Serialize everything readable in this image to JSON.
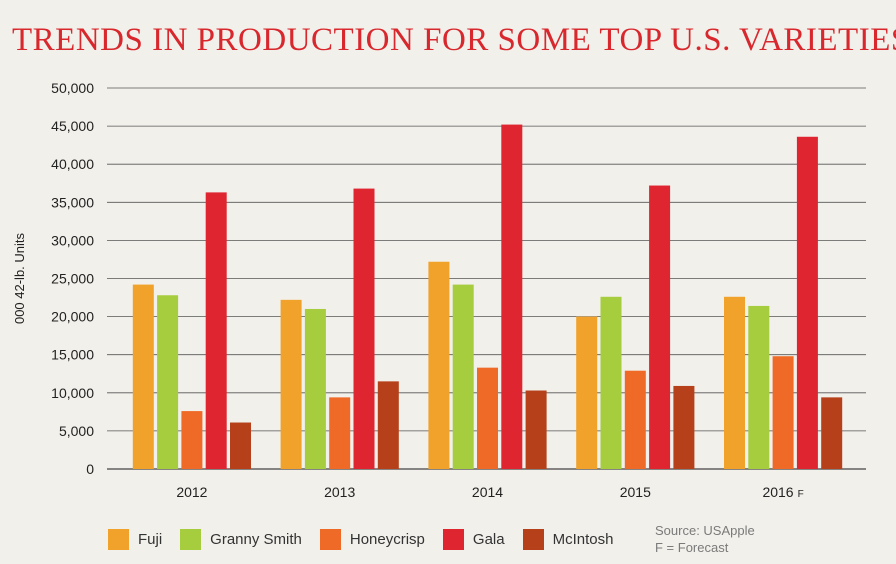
{
  "chart_data": {
    "type": "bar",
    "title": "TRENDS IN PRODUCTION FOR SOME TOP U.S. VARIETIES",
    "ylabel": "000 42-lb. Units",
    "xlabel": "",
    "ylim": [
      0,
      50000
    ],
    "yticks": [
      0,
      5000,
      10000,
      15000,
      20000,
      25000,
      30000,
      35000,
      40000,
      45000,
      50000
    ],
    "ytick_labels": [
      "0",
      "5,000",
      "10,000",
      "15,000",
      "20,000",
      "25,000",
      "30,000",
      "35,000",
      "40,000",
      "45,000",
      "50,000"
    ],
    "categories": [
      "2012",
      "2013",
      "2014",
      "2015",
      "2016"
    ],
    "category_suffix": {
      "2016": "F"
    },
    "grid": true,
    "legend_position": "bottom",
    "series": [
      {
        "name": "Fuji",
        "color": "#f0a22a",
        "values": [
          24200,
          22200,
          27200,
          20000,
          22600
        ]
      },
      {
        "name": "Granny Smith",
        "color": "#a6cd3d",
        "values": [
          22800,
          21000,
          24200,
          22600,
          21400
        ]
      },
      {
        "name": "Honeycrisp",
        "color": "#ef6a27",
        "values": [
          7600,
          9400,
          13300,
          12900,
          14800
        ]
      },
      {
        "name": "Gala",
        "color": "#df2530",
        "values": [
          36300,
          36800,
          45200,
          37200,
          43600
        ]
      },
      {
        "name": "McIntosh",
        "color": "#b5401a",
        "values": [
          6100,
          11500,
          10300,
          10900,
          9400
        ]
      }
    ]
  },
  "source": {
    "line1": "Source: USApple",
    "line2": "F = Forecast"
  }
}
